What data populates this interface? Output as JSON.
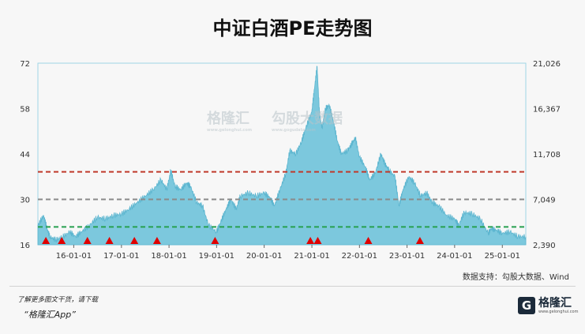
{
  "title": "中证白酒PE走势图",
  "source": "数据支持：勾股大数据、Wind",
  "footer": {
    "note": "了解更多图文干货，请下载",
    "app": "“格隆汇App”"
  },
  "logo": {
    "mark": "G",
    "text": "格隆汇",
    "sub": "www.gelonghui.com"
  },
  "watermark": {
    "brand1": "格隆汇",
    "brand2": "勾股大数据",
    "sub1": "www.gelonghui.com",
    "sub2": "www.gogudata.com"
  },
  "colors": {
    "area_fill": "#7cc8dd",
    "area_stroke": "#5bb5cf",
    "red_line": "#c0392b",
    "gray_line": "#8a8a8a",
    "green_line": "#27a04f",
    "marker": "#e00000",
    "plot_border": "#9fd6e6",
    "background": "#f7f7f7"
  },
  "chart_data": {
    "type": "area",
    "title": "中证白酒PE走势图",
    "y_left": {
      "ticks": [
        16,
        30,
        44,
        58,
        72
      ],
      "tick_labels": [
        "16",
        "30",
        "44",
        "58",
        "72"
      ],
      "range": [
        16,
        72
      ]
    },
    "y_right": {
      "ticks": [
        2390,
        7049,
        11708,
        16367,
        21026
      ],
      "tick_labels": [
        "2,390",
        "7,049",
        "11,708",
        "16,367",
        "21,026"
      ],
      "range": [
        2390,
        21026
      ]
    },
    "x_ticks": [
      "16-01-01",
      "17-01-01",
      "18-01-01",
      "19-01-01",
      "20-01-01",
      "21-01-01",
      "22-01-01",
      "23-01-01",
      "24-01-01",
      "25-01-01"
    ],
    "x_range": [
      "2015-04-01",
      "2025-06-30"
    ],
    "reference_lines": [
      {
        "name": "upper",
        "value": 38.5,
        "style": "dashed",
        "color": "red"
      },
      {
        "name": "median",
        "value": 30,
        "style": "dashed",
        "color": "gray"
      },
      {
        "name": "lower",
        "value": 21.5,
        "style": "dashed",
        "color": "green"
      }
    ],
    "series": [
      {
        "points": [
          [
            "2015-04-01",
            22
          ],
          [
            "2015-05-15",
            25
          ],
          [
            "2015-06-10",
            21
          ],
          [
            "2015-07-01",
            18.5
          ],
          [
            "2015-08-15",
            17.5
          ],
          [
            "2015-10-01",
            18.2
          ],
          [
            "2015-12-01",
            20
          ],
          [
            "2016-01-15",
            18.5
          ],
          [
            "2016-03-01",
            20
          ],
          [
            "2016-05-01",
            22
          ],
          [
            "2016-07-01",
            24.5
          ],
          [
            "2016-09-01",
            24
          ],
          [
            "2016-11-01",
            25
          ],
          [
            "2017-01-01",
            25.5
          ],
          [
            "2017-03-01",
            27
          ],
          [
            "2017-05-01",
            29
          ],
          [
            "2017-07-01",
            31
          ],
          [
            "2017-09-01",
            33
          ],
          [
            "2017-11-01",
            36
          ],
          [
            "2017-12-15",
            33
          ],
          [
            "2018-01-15",
            39
          ],
          [
            "2018-02-15",
            34
          ],
          [
            "2018-04-01",
            33
          ],
          [
            "2018-05-15",
            35
          ],
          [
            "2018-06-15",
            34
          ],
          [
            "2018-08-01",
            29
          ],
          [
            "2018-09-15",
            28
          ],
          [
            "2018-10-31",
            22
          ],
          [
            "2018-12-31",
            20
          ],
          [
            "2019-02-01",
            23
          ],
          [
            "2019-03-15",
            27
          ],
          [
            "2019-04-20",
            30
          ],
          [
            "2019-06-01",
            27
          ],
          [
            "2019-07-01",
            31
          ],
          [
            "2019-09-01",
            32
          ],
          [
            "2019-11-01",
            31
          ],
          [
            "2020-01-01",
            32
          ],
          [
            "2020-02-15",
            30.5
          ],
          [
            "2020-03-20",
            28
          ],
          [
            "2020-05-01",
            33
          ],
          [
            "2020-06-15",
            38
          ],
          [
            "2020-07-15",
            45
          ],
          [
            "2020-09-01",
            44
          ],
          [
            "2020-10-15",
            48
          ],
          [
            "2020-11-15",
            52
          ],
          [
            "2020-12-31",
            57
          ],
          [
            "2021-01-20",
            64
          ],
          [
            "2021-02-10",
            71
          ],
          [
            "2021-03-01",
            56
          ],
          [
            "2021-03-20",
            52
          ],
          [
            "2021-04-15",
            58
          ],
          [
            "2021-05-15",
            59
          ],
          [
            "2021-06-15",
            54
          ],
          [
            "2021-07-15",
            48
          ],
          [
            "2021-08-15",
            44
          ],
          [
            "2021-10-01",
            45
          ],
          [
            "2021-11-01",
            47
          ],
          [
            "2021-12-01",
            49
          ],
          [
            "2022-01-01",
            43
          ],
          [
            "2022-02-15",
            40
          ],
          [
            "2022-03-20",
            36
          ],
          [
            "2022-05-01",
            38
          ],
          [
            "2022-06-15",
            44
          ],
          [
            "2022-07-15",
            41
          ],
          [
            "2022-08-15",
            39
          ],
          [
            "2022-10-01",
            37
          ],
          [
            "2022-10-31",
            28
          ],
          [
            "2022-12-01",
            33
          ],
          [
            "2023-01-15",
            37
          ],
          [
            "2023-03-01",
            35
          ],
          [
            "2023-04-15",
            31
          ],
          [
            "2023-06-01",
            32
          ],
          [
            "2023-07-15",
            29
          ],
          [
            "2023-09-01",
            28
          ],
          [
            "2023-11-01",
            25
          ],
          [
            "2024-01-01",
            24
          ],
          [
            "2024-02-01",
            22
          ],
          [
            "2024-03-15",
            26
          ],
          [
            "2024-05-15",
            25.5
          ],
          [
            "2024-07-15",
            24
          ],
          [
            "2024-09-15",
            19.5
          ],
          [
            "2024-10-08",
            21
          ],
          [
            "2024-11-15",
            20.5
          ],
          [
            "2025-01-01",
            19.5
          ],
          [
            "2025-03-01",
            20
          ],
          [
            "2025-05-01",
            18.5
          ],
          [
            "2025-06-30",
            18.5
          ]
        ]
      }
    ],
    "markers": [
      {
        "x": "2015-06-01",
        "type": "triangle"
      },
      {
        "x": "2015-10-01",
        "type": "triangle"
      },
      {
        "x": "2016-04-15",
        "type": "triangle"
      },
      {
        "x": "2016-10-01",
        "type": "triangle"
      },
      {
        "x": "2017-04-10",
        "type": "triangle"
      },
      {
        "x": "2017-10-01",
        "type": "triangle"
      },
      {
        "x": "2018-12-20",
        "type": "triangle"
      },
      {
        "x": "2020-12-20",
        "type": "triangle"
      },
      {
        "x": "2021-02-15",
        "type": "triangle"
      },
      {
        "x": "2022-03-10",
        "type": "triangle"
      },
      {
        "x": "2023-04-10",
        "type": "triangle"
      }
    ]
  }
}
